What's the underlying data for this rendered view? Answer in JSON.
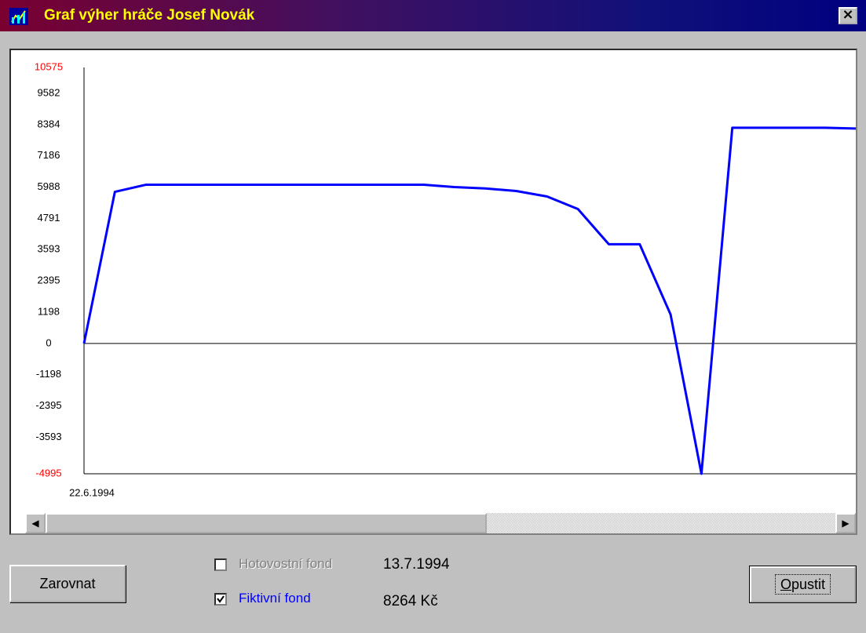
{
  "window": {
    "title": "Graf výher hráče Josef Novák"
  },
  "chart_data": {
    "type": "line",
    "categories": [
      "22.6.1994",
      null,
      null,
      null,
      null,
      null,
      null,
      null,
      null,
      null,
      null,
      null,
      null,
      null,
      null,
      null,
      null,
      null,
      null,
      null,
      null,
      null,
      null,
      null,
      null,
      null
    ],
    "series": [
      {
        "name": "Fiktivní fond",
        "color": "#0000ff",
        "values": [
          0,
          5810,
          6080,
          6080,
          6080,
          6080,
          6080,
          6080,
          6080,
          6080,
          6080,
          6080,
          5990,
          5940,
          5840,
          5630,
          5150,
          3800,
          3800,
          1110,
          -4995,
          8264,
          8264,
          8264,
          8264,
          8236
        ]
      }
    ],
    "ylim": [
      -4995,
      10575
    ],
    "yticks": [
      10575,
      9582,
      8384,
      7186,
      5988,
      4791,
      3593,
      2395,
      1198,
      0,
      -1198,
      -2395,
      -3593,
      -4995
    ],
    "grid": false
  },
  "controls": {
    "align_button": "Zarovnat",
    "exit_button": "Opustit",
    "checkboxes": [
      {
        "label": "Hotovostní fond",
        "checked": false,
        "enabled": false
      }
    ],
    "info_date": "13.7.1994",
    "info_amount": "8264 Kč"
  }
}
